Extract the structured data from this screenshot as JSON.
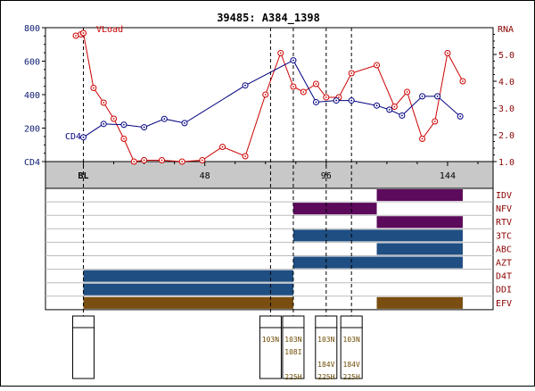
{
  "chart_data": {
    "type": "line",
    "title": "39485: A384_1398",
    "left_axis": {
      "label": "CD4",
      "ticks": [
        "CD4",
        "200",
        "400",
        "600",
        "800"
      ],
      "tick_values": [
        0,
        200,
        400,
        600,
        800
      ],
      "range": [
        0,
        800
      ],
      "color": "#0a1a6e"
    },
    "right_axis": {
      "label": "RNA",
      "ticks": [
        "1.0",
        "2.0",
        "3.0",
        "4.0",
        "5.0"
      ],
      "tick_values": [
        1,
        2,
        3,
        4,
        5
      ],
      "range": [
        1,
        6
      ],
      "color": "#8b0000"
    },
    "x_axis": {
      "ticks": [
        "BL",
        "48",
        "96",
        "144"
      ],
      "tick_values": [
        0,
        48,
        96,
        144
      ],
      "range": [
        -15,
        162
      ]
    },
    "series": [
      {
        "name": "VLoad",
        "axis": "right",
        "color": "#cc0000",
        "x": [
          -3,
          -1,
          0,
          4,
          8,
          12,
          16,
          20,
          24,
          31,
          39,
          47,
          55,
          64,
          72,
          78,
          83,
          87,
          92,
          96,
          101,
          106,
          116,
          123,
          128,
          134,
          139,
          144,
          150
        ],
        "y": [
          5.7,
          5.75,
          5.8,
          3.75,
          3.2,
          2.6,
          1.85,
          1.0,
          1.05,
          1.05,
          0.95,
          1.05,
          1.55,
          1.2,
          3.5,
          5.05,
          3.8,
          3.6,
          3.9,
          3.4,
          3.4,
          4.3,
          4.6,
          3.05,
          3.6,
          1.85,
          2.5,
          5.05,
          4.0
        ]
      },
      {
        "name": "CD4",
        "axis": "left",
        "color": "#000080",
        "x": [
          0,
          8,
          16,
          24,
          32,
          40,
          64,
          83,
          92,
          100,
          106,
          116,
          121,
          126,
          134,
          140,
          149
        ],
        "y": [
          145,
          225,
          220,
          205,
          255,
          230,
          455,
          605,
          355,
          365,
          365,
          335,
          310,
          275,
          390,
          390,
          270
        ]
      }
    ],
    "events": [
      {
        "x": 0,
        "lines": []
      },
      {
        "x": 74,
        "lines": [
          "103N"
        ]
      },
      {
        "x": 83,
        "lines": [
          "103N",
          "108I",
          "",
          "225H"
        ]
      },
      {
        "x": 96,
        "lines": [
          "103N",
          "",
          "184V",
          "225H"
        ]
      },
      {
        "x": 106,
        "lines": [
          "103N",
          "",
          "184V",
          "225H"
        ]
      }
    ],
    "regimen": {
      "drugs": [
        "IDV",
        "NFV",
        "RTV",
        "3TC",
        "ABC",
        "AZT",
        "D4T",
        "DDI",
        "EFV"
      ],
      "colors": {
        "IDV": "#5c0a5c",
        "NFV": "#5c0a5c",
        "RTV": "#5c0a5c",
        "3TC": "#1f4e82",
        "ABC": "#1f4e82",
        "AZT": "#1f4e82",
        "D4T": "#1f4e82",
        "DDI": "#1f4e82",
        "EFV": "#7a4e10"
      },
      "spans": [
        {
          "drug": "IDV",
          "start": 116,
          "end": 150
        },
        {
          "drug": "NFV",
          "start": 83,
          "end": 116
        },
        {
          "drug": "RTV",
          "start": 116,
          "end": 150
        },
        {
          "drug": "3TC",
          "start": 83,
          "end": 150
        },
        {
          "drug": "ABC",
          "start": 116,
          "end": 150
        },
        {
          "drug": "AZT",
          "start": 83,
          "end": 150
        },
        {
          "drug": "D4T",
          "start": 0,
          "end": 83
        },
        {
          "drug": "DDI",
          "start": 0,
          "end": 83
        },
        {
          "drug": "EFV",
          "start": 0,
          "end": 83
        },
        {
          "drug": "EFV",
          "start": 116,
          "end": 150
        }
      ]
    },
    "series_labels": {
      "vload": "VLoad",
      "cd4": "CD4"
    }
  }
}
